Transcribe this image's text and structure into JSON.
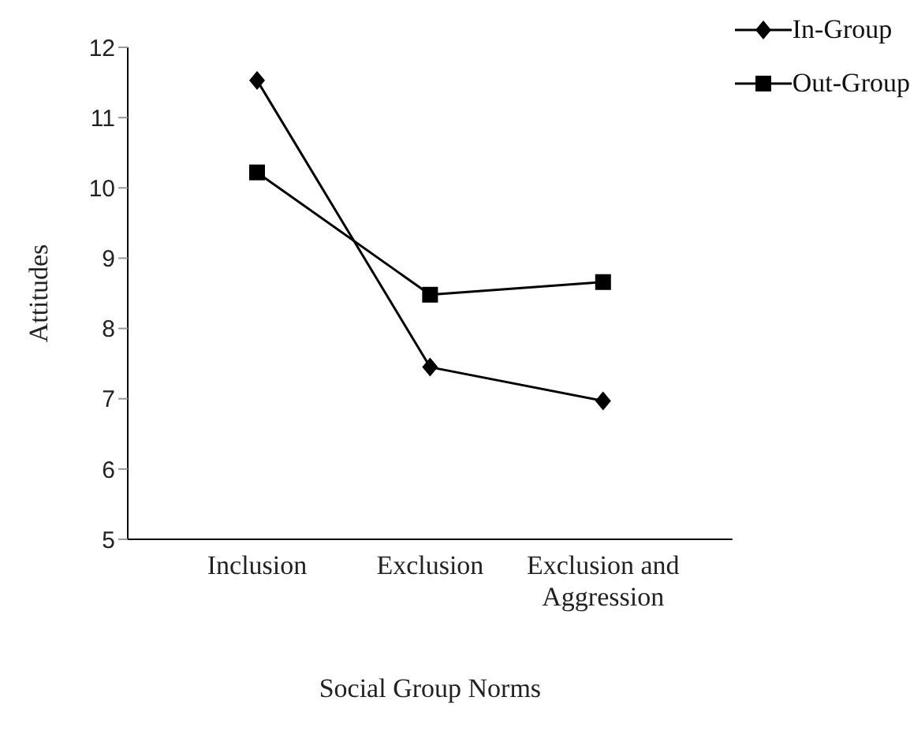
{
  "chart_data": {
    "type": "line",
    "xlabel": "Social Group Norms",
    "ylabel": "Attitudes",
    "categories": [
      "Inclusion",
      "Exclusion",
      "Exclusion and Aggression"
    ],
    "series": [
      {
        "name": "In-Group",
        "color": "#000000",
        "marker": "diamond",
        "values": [
          11.53,
          7.45,
          6.97
        ]
      },
      {
        "name": "Out-Group",
        "color": "#000000",
        "marker": "square",
        "values": [
          10.22,
          8.48,
          8.66
        ]
      }
    ],
    "ylim": [
      5,
      12
    ],
    "yticks": [
      5,
      6,
      7,
      8,
      9,
      10,
      11,
      12
    ],
    "grid": false,
    "legend": "top right"
  }
}
